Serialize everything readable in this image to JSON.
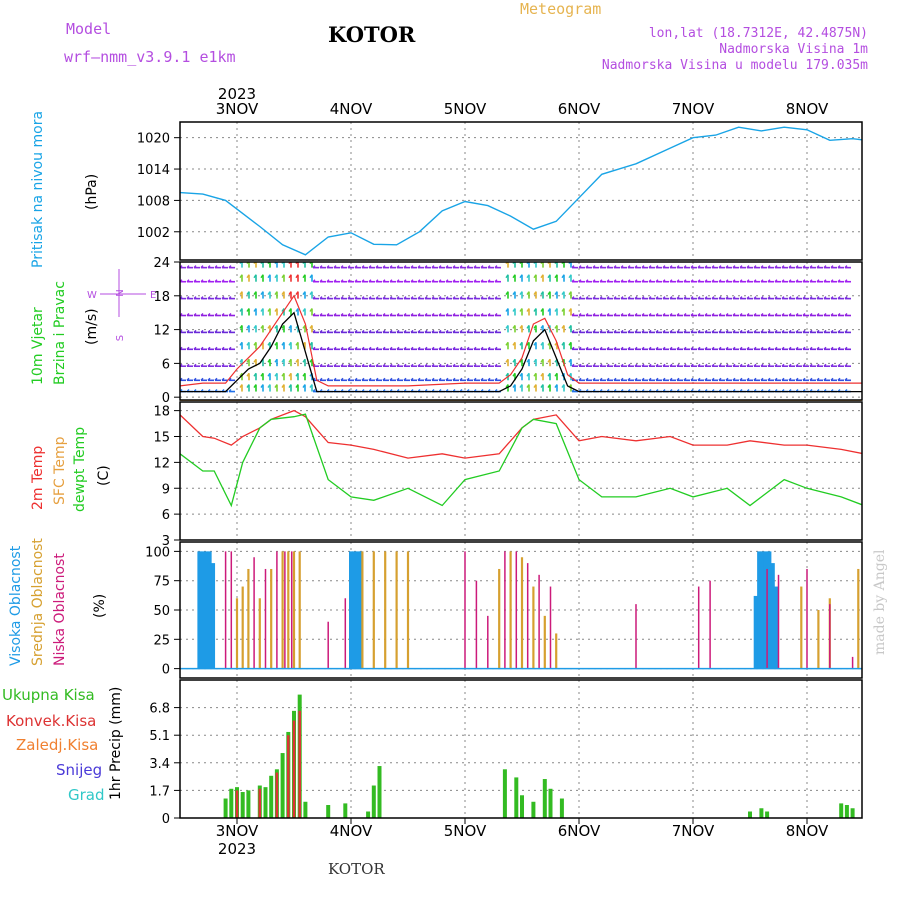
{
  "header": {
    "model_label": "Model",
    "model_name": "wrf—nmm_v3.9.1  e1km",
    "city": "KOTOR",
    "meteogram": "Meteogram",
    "lonlat": "lon,lat (18.7312E, 42.4875N)",
    "altitude": "Nadmorska Visina 1m",
    "model_altitude": "Nadmorska Visina u modelu 179.035m",
    "footer_city": "KOTOR",
    "made_by": "made by Angel"
  },
  "colors": {
    "model_text": "#b44ee0",
    "meteogram_text": "#e6b450",
    "pressure": "#19a4e6",
    "wind_speed": "#000000",
    "gust": "#ee3030",
    "temp2m": "#ee3030",
    "sfc_temp": "#e6a040",
    "dewpt": "#22cc22",
    "cloud_high": "#1e9be6",
    "cloud_mid": "#d6a030",
    "cloud_low": "#cc1a7a",
    "precip_total": "#33bb22",
    "precip_conv": "#dd3333",
    "precip_frozen": "#f08030",
    "snow": "#4a3ad8",
    "hail": "#30c8c8"
  },
  "time_axis": {
    "year_label": "2023",
    "days": [
      "3NOV",
      "4NOV",
      "5NOV",
      "6NOV",
      "7NOV",
      "8NOV"
    ]
  },
  "panels": {
    "pressure": {
      "title": "Pritisak na nivou mora",
      "unit": "(hPa)",
      "ticks": [
        "1020",
        "1014",
        "1008",
        "1002"
      ]
    },
    "wind": {
      "title1": "10m Vjetar",
      "title2": "Brzina i Pravac",
      "unit": "(m/s)",
      "ticks": [
        "24",
        "18",
        "12",
        "6",
        "0"
      ],
      "compass_n": "N",
      "compass_w": "W",
      "compass_e": "E",
      "compass_s": "S"
    },
    "temperature": {
      "title1": "2m Temp",
      "title2": "SFC Temp",
      "title3": "dewpt Temp",
      "unit": "(C)",
      "ticks": [
        "18",
        "15",
        "12",
        "9",
        "6",
        "3"
      ]
    },
    "clouds": {
      "title1": "Visoka Oblacnost",
      "title2": "Srednja Oblacnost",
      "title3": "Niska Oblacnost",
      "unit": "(%)",
      "ticks": [
        "100",
        "75",
        "50",
        "25",
        "0"
      ]
    },
    "precip": {
      "title": "1hr Precip (mm)",
      "ticks": [
        "6.8",
        "5.1",
        "3.4",
        "1.7",
        "0"
      ],
      "legend": [
        "Ukupna Kisa",
        "Konvek.Kisa",
        "Zaledj.Kisa",
        "Snijeg",
        "Grad"
      ]
    }
  },
  "chart_data": [
    {
      "type": "line",
      "title": "Pritisak na nivou mora",
      "ylabel": "(hPa)",
      "x_unit": "days from 3NOV 00Z",
      "ylim": [
        996.6,
        1023
      ],
      "x": [
        -0.5,
        -0.3,
        -0.1,
        0.2,
        0.4,
        0.6,
        0.8,
        1.0,
        1.2,
        1.4,
        1.6,
        1.8,
        2.0,
        2.2,
        2.4,
        2.6,
        2.8,
        3.0,
        3.2,
        3.5,
        3.8,
        4.0,
        4.2,
        4.4,
        4.6,
        4.8,
        5.0,
        5.2,
        5.4,
        5.6,
        5.8
      ],
      "values": [
        1009.5,
        1009.2,
        1008,
        1003,
        999.5,
        997.6,
        1001,
        1001.8,
        999.6,
        999.5,
        1002,
        1006,
        1007.8,
        1007,
        1005,
        1002.5,
        1004,
        1008.5,
        1013,
        1015,
        1018,
        1020,
        1020.5,
        1022,
        1021.3,
        1022,
        1021.5,
        1019.5,
        1019.8,
        1019.3,
        1020
      ]
    },
    {
      "type": "line",
      "title": "10m Vjetar Brzina i Pravac",
      "ylabel": "(m/s)",
      "x_unit": "days from 3NOV 00Z",
      "ylim": [
        -0.5,
        24
      ],
      "x": [
        -0.5,
        -0.3,
        -0.1,
        0.0,
        0.1,
        0.2,
        0.3,
        0.4,
        0.5,
        0.6,
        0.7,
        0.8,
        1.0,
        1.5,
        2.0,
        2.3,
        2.4,
        2.5,
        2.6,
        2.7,
        2.8,
        2.9,
        3.0,
        3.5,
        4.0,
        4.5,
        5.0,
        5.5,
        5.8
      ],
      "series": [
        {
          "values": [
            1,
            1,
            1,
            3,
            5,
            6,
            9,
            13,
            15,
            8,
            1,
            1,
            1,
            1,
            1,
            1,
            2,
            5,
            10,
            12,
            7,
            2,
            1,
            1,
            1,
            1,
            1,
            1,
            1
          ]
        },
        {
          "values": [
            2,
            2.5,
            2.5,
            5,
            7,
            9,
            12,
            15,
            18,
            13,
            3,
            2,
            2,
            2,
            2.5,
            2.5,
            4,
            7,
            13,
            14,
            10,
            4,
            2.5,
            2.5,
            2.5,
            2.5,
            2.5,
            2.5,
            2.5
          ]
        }
      ]
    },
    {
      "type": "line",
      "title": "2m Temp / SFC Temp / dewpt Temp",
      "ylabel": "(C)",
      "x_unit": "days from 3NOV 00Z",
      "ylim": [
        3,
        19
      ],
      "x": [
        -0.5,
        -0.3,
        -0.2,
        -0.05,
        0.05,
        0.2,
        0.3,
        0.5,
        0.6,
        0.8,
        1.0,
        1.2,
        1.5,
        1.8,
        2.0,
        2.3,
        2.5,
        2.6,
        2.8,
        3.0,
        3.2,
        3.5,
        3.8,
        4.0,
        4.3,
        4.5,
        4.8,
        5.0,
        5.3,
        5.5,
        5.8
      ],
      "series": [
        {
          "values": [
            17.5,
            15,
            14.8,
            14,
            15,
            16,
            17,
            18,
            17.3,
            14.3,
            14,
            13.5,
            12.5,
            13,
            12.5,
            13,
            16,
            17,
            17.5,
            14.5,
            15,
            14.5,
            15,
            14,
            14,
            14.5,
            14,
            14,
            13.5,
            13,
            12
          ]
        },
        {
          "values": [
            13,
            11,
            11,
            7,
            12,
            16,
            17,
            17.3,
            17.6,
            10,
            8,
            7.6,
            9,
            7,
            10,
            11,
            16,
            17,
            16.5,
            10,
            8,
            8,
            9,
            8,
            9,
            7,
            10,
            9,
            8,
            7,
            4.5
          ]
        }
      ]
    },
    {
      "type": "bar",
      "title": "Visoka / Srednja / Niska Oblacnost",
      "ylabel": "(%)",
      "x_unit": "days from 3NOV 00Z",
      "ylim": [
        0,
        100
      ],
      "series": [
        {
          "x": [
            -0.33,
            -0.3,
            -0.27,
            -0.24,
            -0.21,
            1.0,
            1.03,
            1.06,
            1.09,
            4.55,
            4.58,
            4.61,
            4.64,
            4.67,
            4.7,
            4.73
          ],
          "values": [
            100,
            100,
            100,
            100,
            90,
            100,
            100,
            100,
            100,
            62,
            100,
            100,
            100,
            100,
            90,
            70
          ]
        },
        {
          "x": [
            0.0,
            0.05,
            0.1,
            0.2,
            0.3,
            0.4,
            0.45,
            0.5,
            0.55,
            1.1,
            1.2,
            1.3,
            1.4,
            1.5,
            2.3,
            2.4,
            2.5,
            2.6,
            2.7,
            2.8,
            4.95,
            5.1,
            5.2,
            5.45
          ],
          "values": [
            60,
            70,
            85,
            60,
            85,
            100,
            100,
            100,
            100,
            100,
            100,
            100,
            100,
            100,
            85,
            100,
            95,
            70,
            45,
            30,
            70,
            50,
            60,
            85
          ]
        },
        {
          "x": [
            -0.6,
            -0.1,
            -0.05,
            0.15,
            0.25,
            0.35,
            0.42,
            0.48,
            0.8,
            0.95,
            2.0,
            2.1,
            2.2,
            2.35,
            2.45,
            2.55,
            2.65,
            2.75,
            3.5,
            4.05,
            4.15,
            4.65,
            4.75,
            5.0,
            5.2,
            5.4
          ],
          "values": [
            60,
            100,
            100,
            95,
            85,
            100,
            100,
            100,
            40,
            60,
            100,
            75,
            45,
            100,
            100,
            90,
            80,
            70,
            55,
            70,
            75,
            85,
            80,
            85,
            55,
            10
          ]
        }
      ]
    },
    {
      "type": "bar",
      "title": "1hr Precip (mm)",
      "ylabel": "1hr Precip (mm)",
      "x_unit": "days from 3NOV 00Z",
      "ylim": [
        0,
        8.5
      ],
      "series": [
        {
          "name": "Ukupna Kisa",
          "x": [
            -0.1,
            -0.05,
            0.0,
            0.05,
            0.1,
            0.2,
            0.25,
            0.3,
            0.35,
            0.4,
            0.45,
            0.5,
            0.55,
            0.6,
            0.8,
            0.95,
            1.15,
            1.2,
            1.25,
            2.35,
            2.45,
            2.5,
            2.6,
            2.7,
            2.75,
            2.85,
            4.5,
            4.6,
            4.65,
            5.3,
            5.35,
            5.4
          ],
          "values": [
            1.2,
            1.8,
            1.9,
            1.6,
            1.7,
            2.0,
            1.9,
            2.6,
            3.0,
            4.0,
            5.3,
            6.6,
            7.6,
            1.0,
            0.8,
            0.9,
            0.4,
            2.0,
            3.2,
            3.0,
            2.5,
            1.4,
            1.0,
            2.4,
            1.8,
            1.2,
            0.4,
            0.6,
            0.4,
            0.9,
            0.8,
            0.6
          ]
        },
        {
          "name": "Konvek.Kisa",
          "x": [
            0.0,
            0.2,
            0.35,
            0.45,
            0.5,
            0.55
          ],
          "values": [
            1.7,
            1.8,
            2.8,
            5.1,
            6.0,
            6.6
          ]
        }
      ]
    }
  ]
}
